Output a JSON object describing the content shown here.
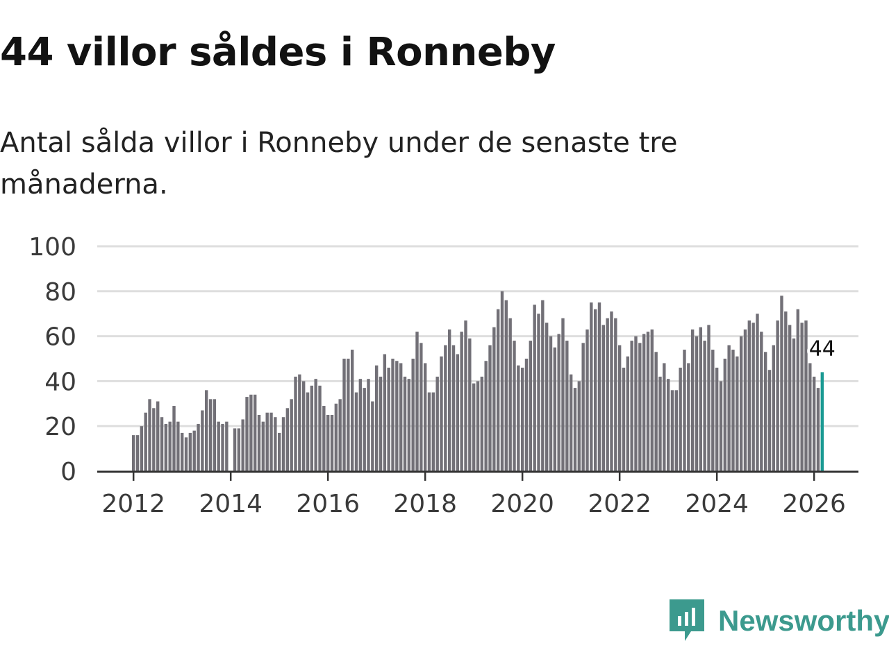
{
  "header": {
    "title": "44 villor såldes i Ronneby",
    "subtitle": "Antal sålda villor i Ronneby under de senaste tre månaderna."
  },
  "chart_data": {
    "type": "bar",
    "title": "44 villor såldes i Ronneby",
    "subtitle": "Antal sålda villor i Ronneby under de senaste tre månaderna.",
    "xlabel": "",
    "ylabel": "",
    "ylim": [
      0,
      100
    ],
    "yticks": [
      0,
      20,
      40,
      60,
      80,
      100
    ],
    "xticks": [
      "2012",
      "2014",
      "2016",
      "2018",
      "2020",
      "2022",
      "2024",
      "2026"
    ],
    "start": "2012-01",
    "values": [
      16,
      16,
      20,
      26,
      32,
      28,
      31,
      24,
      21,
      22,
      29,
      22,
      17,
      15,
      17,
      18,
      21,
      27,
      36,
      32,
      32,
      22,
      21,
      22,
      null,
      19,
      19,
      23,
      33,
      34,
      34,
      25,
      22,
      26,
      26,
      24,
      17,
      24,
      28,
      32,
      42,
      43,
      40,
      35,
      38,
      41,
      38,
      29,
      25,
      25,
      30,
      32,
      50,
      50,
      54,
      35,
      41,
      37,
      41,
      31,
      47,
      42,
      52,
      46,
      50,
      49,
      48,
      42,
      41,
      50,
      62,
      57,
      48,
      35,
      35,
      42,
      51,
      56,
      63,
      56,
      52,
      62,
      67,
      59,
      39,
      40,
      42,
      49,
      56,
      64,
      72,
      80,
      76,
      68,
      58,
      47,
      46,
      50,
      58,
      74,
      70,
      76,
      66,
      60,
      55,
      61,
      68,
      58,
      43,
      37,
      40,
      57,
      63,
      75,
      72,
      75,
      65,
      68,
      71,
      68,
      56,
      46,
      51,
      58,
      60,
      57,
      61,
      62,
      63,
      53,
      42,
      48,
      41,
      36,
      36,
      46,
      54,
      48,
      63,
      60,
      64,
      58,
      65,
      54,
      46,
      40,
      50,
      56,
      54,
      51,
      60,
      63,
      67,
      66,
      70,
      62,
      53,
      45,
      56,
      67,
      78,
      71,
      65,
      59,
      72,
      66,
      67,
      48,
      42,
      37,
      44
    ],
    "highlight_index": 170,
    "highlight_label": "44",
    "bar_color": "#727077",
    "highlight_color": "#1a9a93",
    "grid": true
  },
  "brand": {
    "name": "Newsworthy",
    "color": "#3c9a8e",
    "icon": "newsworthy-logo-icon"
  }
}
